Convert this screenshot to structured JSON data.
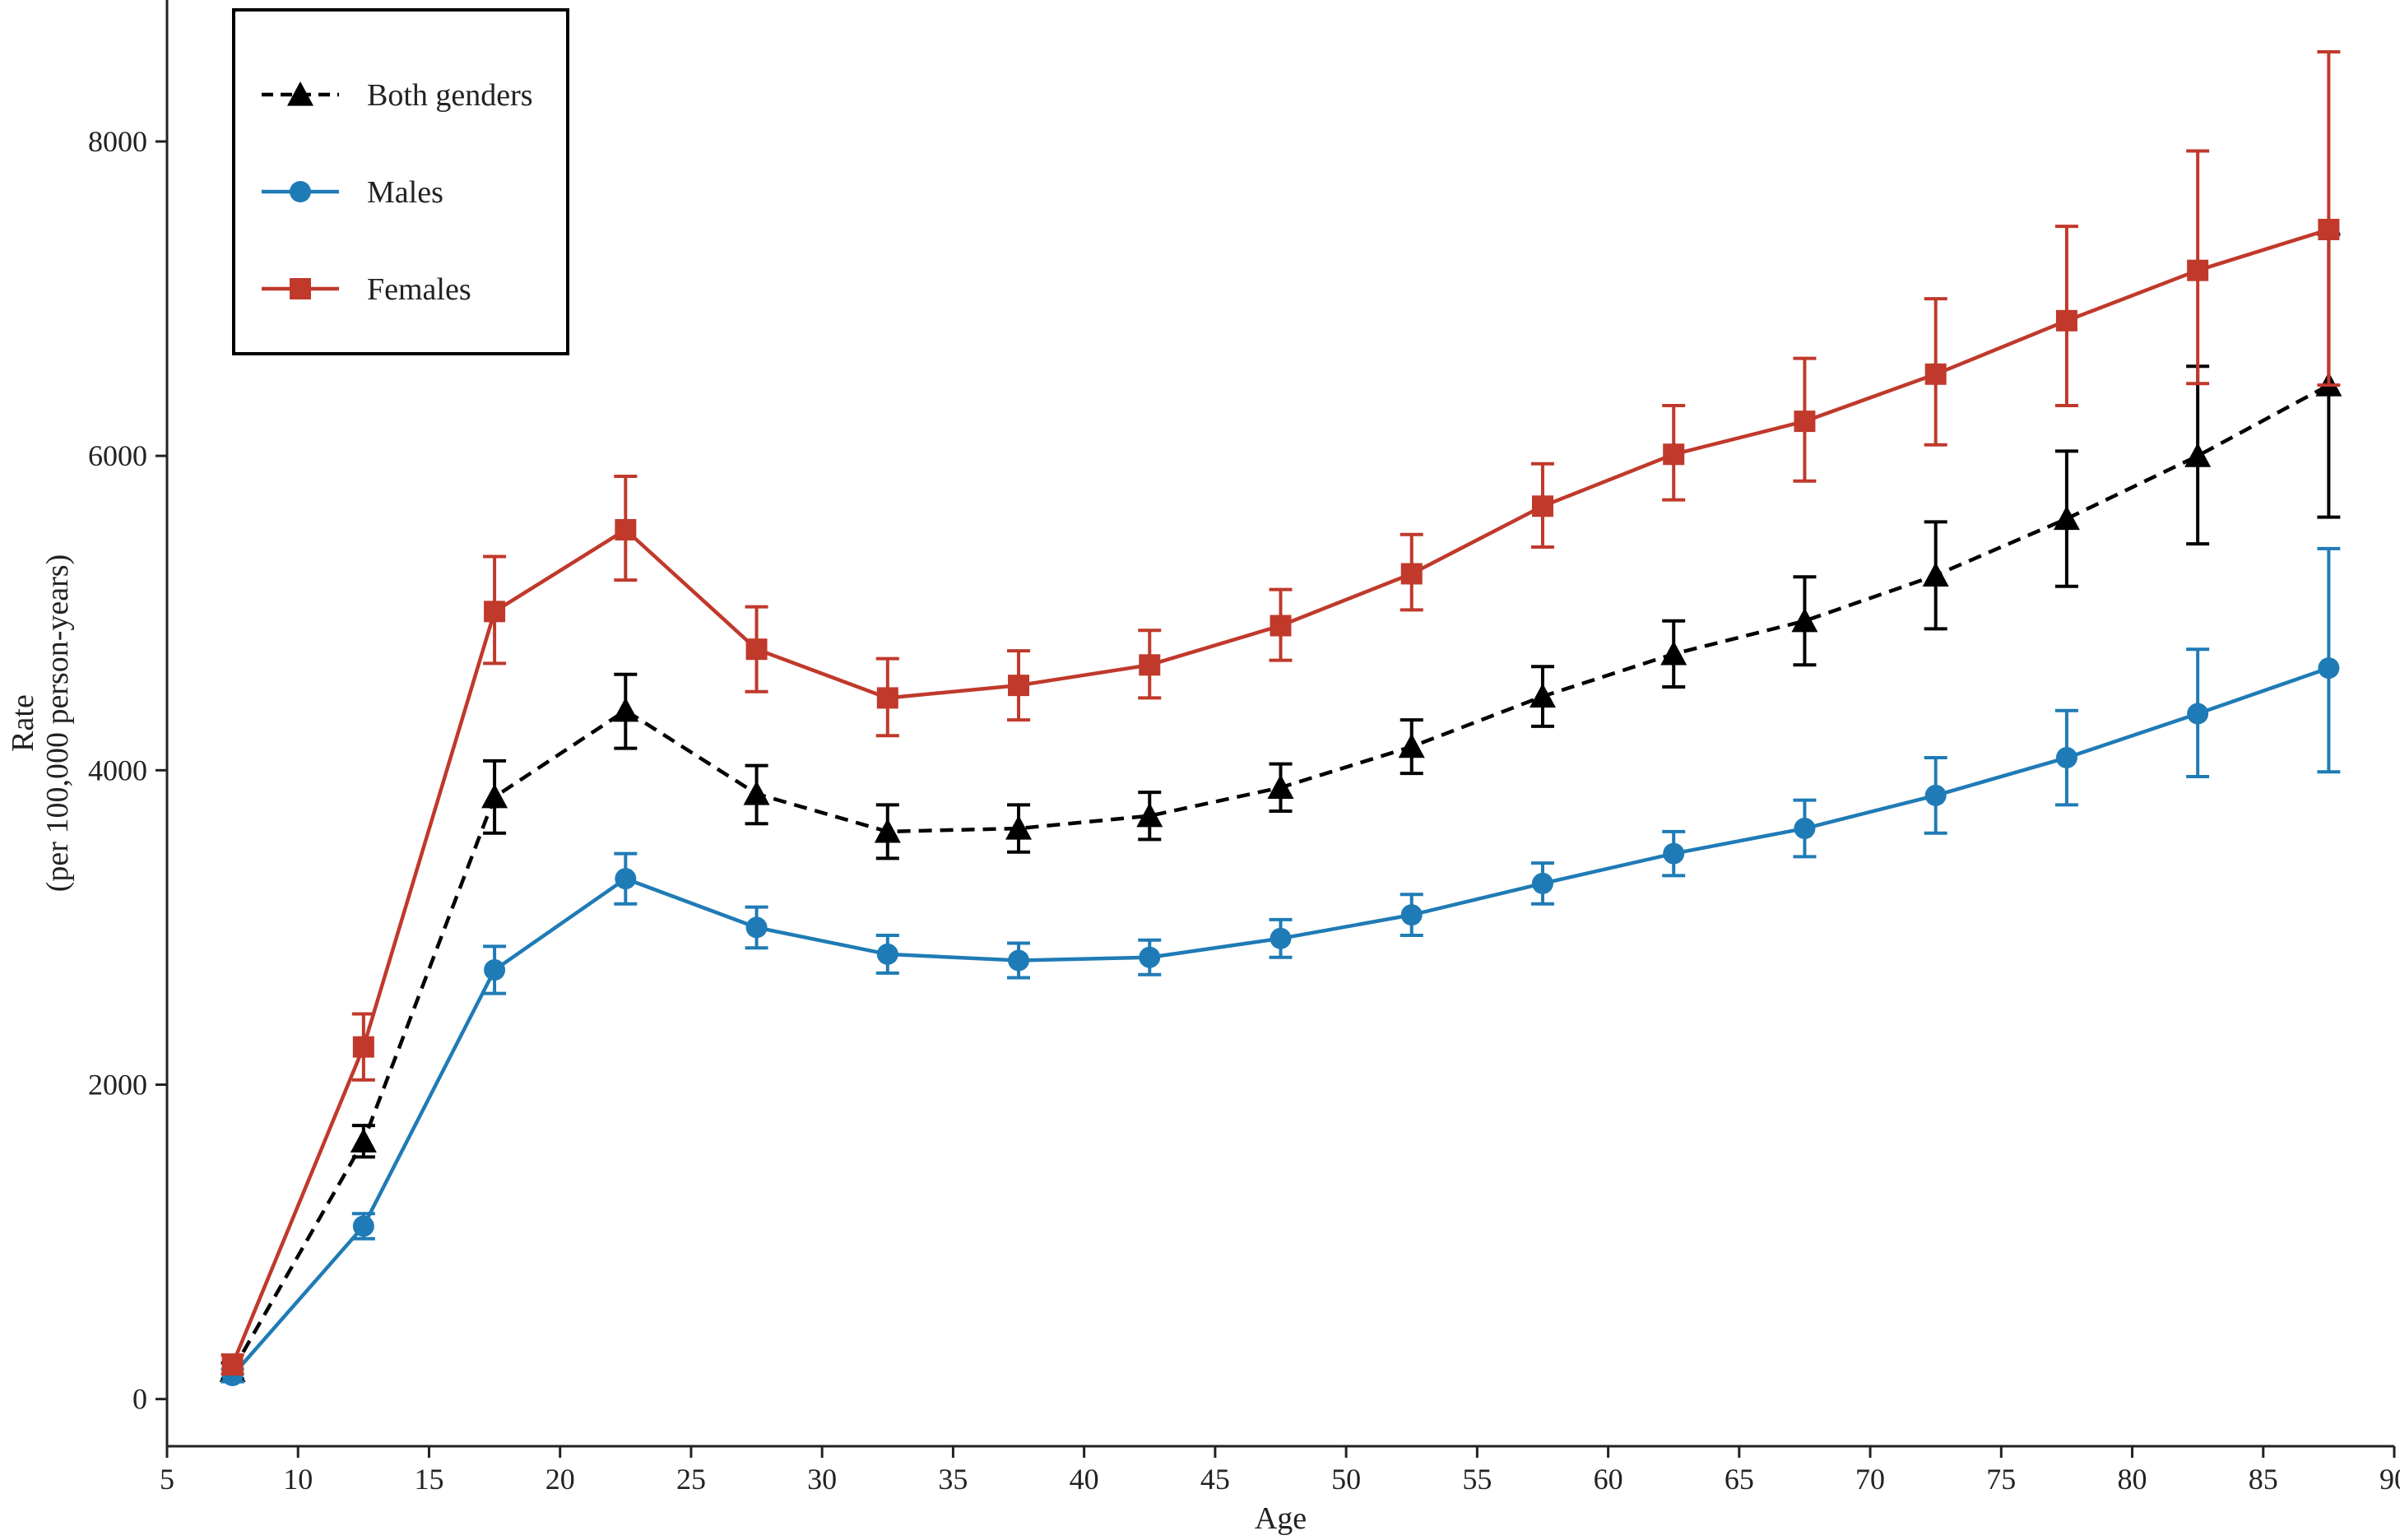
{
  "chart_data": {
    "type": "line",
    "title": "",
    "xlabel": "Age",
    "ylabel_line1": "Rate",
    "ylabel_line2": "(per 100,000 person-years)",
    "xlim": [
      5,
      90
    ],
    "ylim": [
      -300,
      8900
    ],
    "x_ticks": [
      5,
      10,
      15,
      20,
      25,
      30,
      35,
      40,
      45,
      50,
      55,
      60,
      65,
      70,
      75,
      80,
      85,
      90
    ],
    "y_ticks": [
      0,
      2000,
      4000,
      6000,
      8000
    ],
    "grid": false,
    "legend_position": "top-left",
    "x": [
      7.5,
      12.5,
      17.5,
      22.5,
      27.5,
      32.5,
      37.5,
      42.5,
      47.5,
      52.5,
      57.5,
      62.5,
      67.5,
      72.5,
      77.5,
      82.5,
      87.5
    ],
    "series": [
      {
        "name": "Both genders",
        "color": "#000000",
        "marker": "triangle",
        "line_style": "dashed",
        "values": [
          180,
          1640,
          3830,
          4380,
          3850,
          3610,
          3630,
          3710,
          3890,
          4150,
          4470,
          4740,
          4950,
          5240,
          5600,
          6000,
          6450
        ],
        "lower": [
          130,
          1540,
          3600,
          4140,
          3660,
          3440,
          3480,
          3560,
          3740,
          3980,
          4280,
          4530,
          4670,
          4900,
          5170,
          5440,
          5610
        ],
        "upper": [
          230,
          1740,
          4060,
          4610,
          4030,
          3780,
          3780,
          3860,
          4040,
          4320,
          4660,
          4950,
          5230,
          5580,
          6030,
          6570,
          7410
        ]
      },
      {
        "name": "Males",
        "color": "#1f7bb6",
        "marker": "circle",
        "line_style": "solid",
        "values": [
          150,
          1100,
          2730,
          3310,
          3000,
          2830,
          2790,
          2810,
          2930,
          3080,
          3280,
          3470,
          3630,
          3840,
          4080,
          4360,
          4650
        ],
        "lower": [
          110,
          1020,
          2580,
          3150,
          2870,
          2710,
          2680,
          2700,
          2810,
          2950,
          3150,
          3330,
          3450,
          3600,
          3780,
          3960,
          3990
        ],
        "upper": [
          190,
          1180,
          2880,
          3470,
          3130,
          2950,
          2900,
          2920,
          3050,
          3210,
          3410,
          3610,
          3810,
          4080,
          4380,
          4770,
          5410
        ]
      },
      {
        "name": "Females",
        "color": "#c0392b",
        "marker": "square",
        "line_style": "solid",
        "values": [
          220,
          2240,
          5010,
          5530,
          4770,
          4460,
          4540,
          4670,
          4920,
          5250,
          5680,
          6010,
          6220,
          6520,
          6860,
          7180,
          7440
        ],
        "lower": [
          160,
          2030,
          4680,
          5210,
          4500,
          4220,
          4320,
          4460,
          4700,
          5020,
          5420,
          5720,
          5840,
          6070,
          6320,
          6460,
          6450
        ],
        "upper": [
          280,
          2450,
          5360,
          5870,
          5040,
          4710,
          4760,
          4890,
          5150,
          5500,
          5950,
          6320,
          6620,
          7000,
          7460,
          7940,
          8570
        ]
      }
    ]
  }
}
